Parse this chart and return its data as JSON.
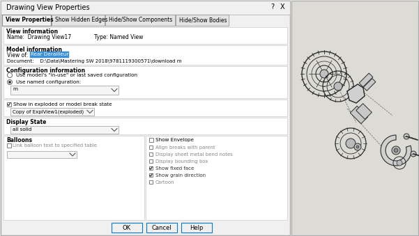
{
  "bg_color": "#ecebe9",
  "dialog_bg": "#f0f0f0",
  "white": "#ffffff",
  "border_color": "#999999",
  "title": "Drawing View Properties",
  "tabs": [
    "View Properties",
    "Show Hidden Edges",
    "Hide/Show Components",
    "Hide/Show Bodies"
  ],
  "view_info_name": "Name:  Drawing View17",
  "view_info_type": "Type: Named View",
  "model_view_of_label": "View of:",
  "model_view_of_value": "Rear Derailleur",
  "model_document": "Document:    D:\\Data\\Mastering SW 2018\\9781119300571\\download m",
  "config_radio1": "Use model's \"in-use\" or last saved configuration",
  "config_radio2": "Use named configuration:",
  "config_dropdown": "m",
  "exploded_check": "Show in exploded or model break state",
  "exploded_dropdown": "Copy of ExplView1(exploded)",
  "display_state_label": "Display State",
  "display_state_dropdown": "all solid",
  "balloons_label": "Balloons",
  "balloons_check": "Link balloon text to specified table",
  "show_envelope_check": "Show Envelope",
  "check_items": [
    "Align breaks with parent",
    "Display sheet metal bend notes",
    "Display bounding box",
    "Show fixed face",
    "Show grain direction",
    "Cartoon"
  ],
  "check_states": [
    false,
    false,
    false,
    true,
    true,
    false
  ],
  "btn_ok": "OK",
  "btn_cancel": "Cancel",
  "btn_help": "Help",
  "right_panel_bg": "#dcdbd5"
}
